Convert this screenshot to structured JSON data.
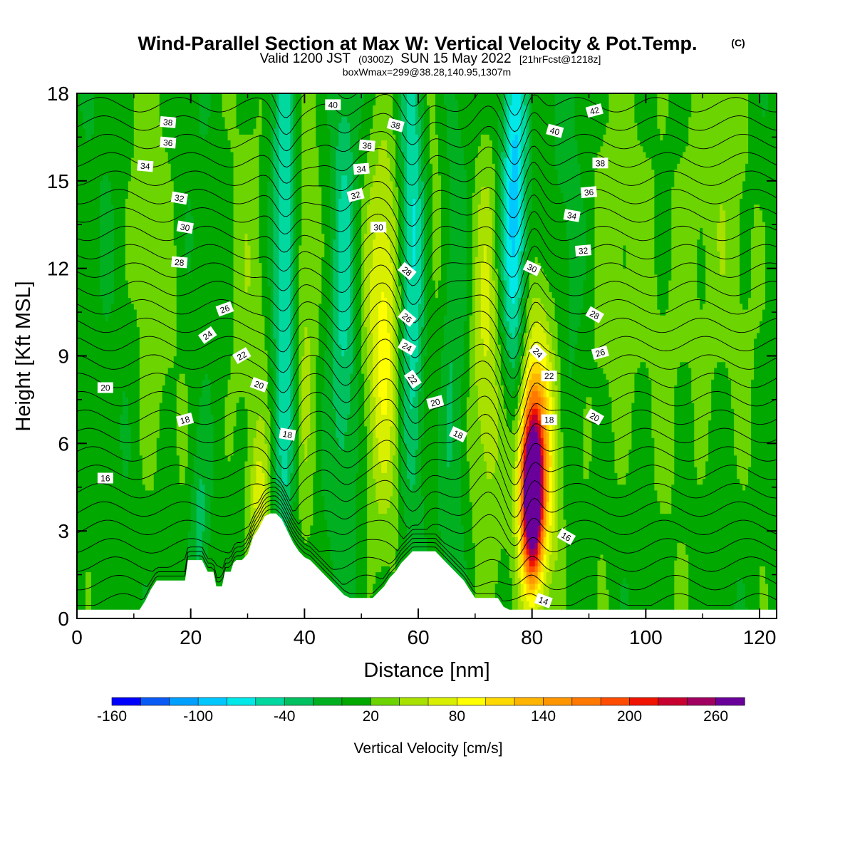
{
  "chart_data": {
    "type": "heatmap",
    "title": "Wind-Parallel Section at Max W: Vertical Velocity & Pot.Temp.",
    "title_mark": "(C)",
    "subtitle_line1_pre": "Valid 1200 JST",
    "subtitle_line1_z": "(0300Z)",
    "subtitle_line1_mid": "SUN 15 May 2022",
    "subtitle_line1_fcst": "[21hrFcst@1218z]",
    "subtitle_line2": "boxWmax=299@38.28,140.95,1307m",
    "xlabel": "Distance [nm]",
    "ylabel": "Height [Kft MSL]",
    "xlim": [
      0,
      123
    ],
    "ylim": [
      0,
      18
    ],
    "xticks": [
      0,
      20,
      40,
      60,
      80,
      100,
      120
    ],
    "yticks": [
      0,
      3,
      6,
      9,
      12,
      15,
      18
    ],
    "colorbar": {
      "label": "Vertical Velocity [cm/s]",
      "ticks": [
        "-160",
        "-100",
        "-40",
        "20",
        "80",
        "140",
        "200",
        "260"
      ],
      "tick_values": [
        -160,
        -100,
        -40,
        20,
        80,
        140,
        200,
        260
      ],
      "min": -160,
      "step": 20,
      "colors": [
        "#0000ff",
        "#0a5af5",
        "#00a0ff",
        "#00c8ff",
        "#00e8e8",
        "#00d8a0",
        "#00c060",
        "#00b020",
        "#00a800",
        "#6cd400",
        "#a8e000",
        "#d8f000",
        "#ffff00",
        "#ffd800",
        "#ffb400",
        "#ff9600",
        "#ff7800",
        "#ff4c00",
        "#f01400",
        "#c80030",
        "#a00060",
        "#6a009a"
      ]
    },
    "terrain": [
      [
        0,
        0.3
      ],
      [
        11,
        0.3
      ],
      [
        12,
        0.6
      ],
      [
        13,
        1.0
      ],
      [
        14,
        1.3
      ],
      [
        19,
        1.3
      ],
      [
        19.5,
        2.0
      ],
      [
        22,
        2.0
      ],
      [
        23,
        1.6
      ],
      [
        24,
        1.6
      ],
      [
        24.5,
        1.1
      ],
      [
        25.5,
        1.1
      ],
      [
        26,
        1.6
      ],
      [
        27,
        1.6
      ],
      [
        27.5,
        1.9
      ],
      [
        28,
        2.0
      ],
      [
        29,
        2.0
      ],
      [
        30,
        2.2
      ],
      [
        30.5,
        2.5
      ],
      [
        31,
        2.8
      ],
      [
        32,
        3.1
      ],
      [
        33,
        3.5
      ],
      [
        34,
        3.6
      ],
      [
        35,
        3.6
      ],
      [
        36,
        3.4
      ],
      [
        37,
        3.0
      ],
      [
        38,
        2.6
      ],
      [
        39,
        2.3
      ],
      [
        40,
        2.1
      ],
      [
        41,
        2.0
      ],
      [
        42,
        1.8
      ],
      [
        43,
        1.6
      ],
      [
        44,
        1.4
      ],
      [
        45,
        1.2
      ],
      [
        46,
        1.0
      ],
      [
        47,
        0.8
      ],
      [
        48,
        0.7
      ],
      [
        52,
        0.7
      ],
      [
        53,
        0.9
      ],
      [
        54,
        1.1
      ],
      [
        55,
        1.4
      ],
      [
        56,
        1.6
      ],
      [
        57,
        1.9
      ],
      [
        58,
        2.1
      ],
      [
        59,
        2.3
      ],
      [
        63,
        2.3
      ],
      [
        64,
        2.1
      ],
      [
        65,
        1.9
      ],
      [
        66,
        1.7
      ],
      [
        67,
        1.5
      ],
      [
        68,
        1.3
      ],
      [
        69,
        1.0
      ],
      [
        70,
        0.7
      ],
      [
        74,
        0.7
      ],
      [
        75,
        0.4
      ],
      [
        76,
        0.3
      ],
      [
        123,
        0.3
      ]
    ],
    "updrafts": [
      {
        "x": 80.0,
        "w": 1.2,
        "z_center": 4.3,
        "z_spread": 1.8,
        "value": 299
      },
      {
        "x": 80.5,
        "w": 3.0,
        "z_center": 5.5,
        "z_spread": 3.5,
        "value": 140
      },
      {
        "x": 54.0,
        "w": 2.2,
        "z_center": 10.5,
        "z_spread": 4.5,
        "value": 80
      },
      {
        "x": 72.0,
        "w": 1.8,
        "z_center": 10.0,
        "z_spread": 5.0,
        "value": 55
      },
      {
        "x": 40.0,
        "w": 1.8,
        "z_center": 11.0,
        "z_spread": 5.5,
        "value": 45
      },
      {
        "x": 32.0,
        "w": 1.2,
        "z_center": 4.0,
        "z_spread": 1.5,
        "value": 50
      },
      {
        "x": 30.0,
        "w": 3.0,
        "z_center": 9.0,
        "z_spread": 6.0,
        "value": 22
      },
      {
        "x": 62.0,
        "w": 3.5,
        "z_center": 12.0,
        "z_spread": 6.0,
        "value": 25
      },
      {
        "x": 93.0,
        "w": 4.0,
        "z_center": 11.0,
        "z_spread": 6.0,
        "value": 25
      },
      {
        "x": 110.0,
        "w": 6.0,
        "z_center": 13.0,
        "z_spread": 6.0,
        "value": 25
      },
      {
        "x": 13.0,
        "w": 3.0,
        "z_center": 12.0,
        "z_spread": 7.0,
        "value": 20
      }
    ],
    "downdrafts": [
      {
        "x": 36.5,
        "w": 1.5,
        "z_center": 11.0,
        "z_spread": 7.0,
        "value": -80
      },
      {
        "x": 59.0,
        "w": 1.6,
        "z_center": 13.0,
        "z_spread": 6.0,
        "value": -90
      },
      {
        "x": 77.0,
        "w": 1.6,
        "z_center": 14.0,
        "z_spread": 6.0,
        "value": -100
      },
      {
        "x": 47.0,
        "w": 1.6,
        "z_center": 12.0,
        "z_spread": 6.0,
        "value": -60
      },
      {
        "x": 66.0,
        "w": 1.8,
        "z_center": 10.0,
        "z_spread": 6.0,
        "value": -45
      },
      {
        "x": 86.0,
        "w": 2.5,
        "z_center": 9.0,
        "z_spread": 6.0,
        "value": -30
      },
      {
        "x": 21.5,
        "w": 1.2,
        "z_center": 3.0,
        "z_spread": 2.0,
        "value": -40
      }
    ],
    "isentrope_levels": [
      14,
      15,
      16,
      17,
      18,
      19,
      20,
      21,
      22,
      23,
      24,
      25,
      26,
      27,
      28,
      29,
      30,
      31,
      32,
      33,
      34,
      35,
      36,
      37,
      38,
      39,
      40,
      41,
      42
    ],
    "isentrope_labels": [
      {
        "text": "40",
        "x": 45,
        "z": 17.6,
        "rot": 0
      },
      {
        "text": "38",
        "x": 16,
        "z": 17.0,
        "rot": 5
      },
      {
        "text": "36",
        "x": 16,
        "z": 16.3,
        "rot": 5
      },
      {
        "text": "34",
        "x": 12,
        "z": 15.5,
        "rot": 5
      },
      {
        "text": "32",
        "x": 18,
        "z": 14.4,
        "rot": 10
      },
      {
        "text": "30",
        "x": 19,
        "z": 13.4,
        "rot": 10
      },
      {
        "text": "28",
        "x": 18,
        "z": 12.2,
        "rot": 5
      },
      {
        "text": "26",
        "x": 26,
        "z": 10.6,
        "rot": -20
      },
      {
        "text": "24",
        "x": 23,
        "z": 9.7,
        "rot": -35
      },
      {
        "text": "22",
        "x": 29,
        "z": 9.0,
        "rot": -30
      },
      {
        "text": "20",
        "x": 5,
        "z": 7.9,
        "rot": 0
      },
      {
        "text": "20",
        "x": 32,
        "z": 8.0,
        "rot": 20
      },
      {
        "text": "18",
        "x": 19,
        "z": 6.8,
        "rot": -15
      },
      {
        "text": "18",
        "x": 37,
        "z": 6.3,
        "rot": 10
      },
      {
        "text": "16",
        "x": 5,
        "z": 4.8,
        "rot": 0
      },
      {
        "text": "38",
        "x": 56,
        "z": 16.9,
        "rot": 15
      },
      {
        "text": "36",
        "x": 51,
        "z": 16.2,
        "rot": 5
      },
      {
        "text": "34",
        "x": 50,
        "z": 15.4,
        "rot": -5
      },
      {
        "text": "32",
        "x": 49,
        "z": 14.5,
        "rot": -15
      },
      {
        "text": "30",
        "x": 53,
        "z": 13.4,
        "rot": 0
      },
      {
        "text": "28",
        "x": 58,
        "z": 11.9,
        "rot": 40
      },
      {
        "text": "26",
        "x": 58,
        "z": 10.3,
        "rot": 40
      },
      {
        "text": "24",
        "x": 58,
        "z": 9.3,
        "rot": 30
      },
      {
        "text": "22",
        "x": 59,
        "z": 8.2,
        "rot": 55
      },
      {
        "text": "20",
        "x": 63,
        "z": 7.4,
        "rot": -15
      },
      {
        "text": "18",
        "x": 67,
        "z": 6.3,
        "rot": 25
      },
      {
        "text": "42",
        "x": 91,
        "z": 17.4,
        "rot": -15
      },
      {
        "text": "40",
        "x": 84,
        "z": 16.7,
        "rot": 15
      },
      {
        "text": "38",
        "x": 92,
        "z": 15.6,
        "rot": 0
      },
      {
        "text": "36",
        "x": 90,
        "z": 14.6,
        "rot": -5
      },
      {
        "text": "34",
        "x": 87,
        "z": 13.8,
        "rot": 10
      },
      {
        "text": "32",
        "x": 89,
        "z": 12.6,
        "rot": -5
      },
      {
        "text": "30",
        "x": 80,
        "z": 12.0,
        "rot": 25
      },
      {
        "text": "28",
        "x": 91,
        "z": 10.4,
        "rot": 30
      },
      {
        "text": "26",
        "x": 92,
        "z": 9.1,
        "rot": -15
      },
      {
        "text": "24",
        "x": 81,
        "z": 9.1,
        "rot": 45
      },
      {
        "text": "22",
        "x": 83,
        "z": 8.3,
        "rot": 0
      },
      {
        "text": "18",
        "x": 83,
        "z": 6.8,
        "rot": 0
      },
      {
        "text": "20",
        "x": 91,
        "z": 6.9,
        "rot": 30
      },
      {
        "text": "16",
        "x": 86,
        "z": 2.8,
        "rot": 30
      },
      {
        "text": "14",
        "x": 82,
        "z": 0.6,
        "rot": 20
      }
    ]
  }
}
